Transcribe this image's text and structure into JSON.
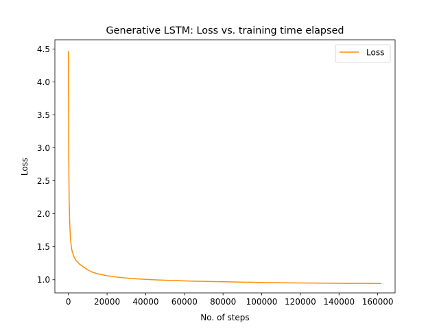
{
  "chart_data": {
    "type": "line",
    "title": "Generative LSTM: Loss vs. training time elapsed",
    "xlabel": "No. of steps",
    "ylabel": "Loss",
    "xlim": [
      -7000,
      169000
    ],
    "ylim": [
      0.8,
      4.64
    ],
    "xticks": [
      0,
      20000,
      40000,
      60000,
      80000,
      100000,
      120000,
      140000,
      160000
    ],
    "xtick_labels": [
      "0",
      "20000",
      "40000",
      "60000",
      "80000",
      "100000",
      "120000",
      "140000",
      "160000"
    ],
    "yticks": [
      1.0,
      1.5,
      2.0,
      2.5,
      3.0,
      3.5,
      4.0,
      4.5
    ],
    "ytick_labels": [
      "1.0",
      "1.5",
      "2.0",
      "2.5",
      "3.0",
      "3.5",
      "4.0",
      "4.5"
    ],
    "grid": false,
    "legend_position": "top-right",
    "series": [
      {
        "name": "Loss",
        "color": "#ff8c00",
        "x": [
          0,
          100,
          200,
          400,
          700,
          1000,
          1500,
          2000,
          3000,
          4000,
          5000,
          6000,
          8000,
          10000,
          12000,
          15000,
          20000,
          25000,
          30000,
          35000,
          40000,
          45000,
          50000,
          55000,
          60000,
          65000,
          70000,
          75000,
          80000,
          85000,
          90000,
          95000,
          100000,
          110000,
          120000,
          130000,
          140000,
          150000,
          155000,
          160000,
          161500
        ],
        "values": [
          4.46,
          3.6,
          2.8,
          2.2,
          1.85,
          1.65,
          1.5,
          1.42,
          1.34,
          1.29,
          1.26,
          1.23,
          1.19,
          1.15,
          1.12,
          1.09,
          1.06,
          1.04,
          1.025,
          1.013,
          1.005,
          0.998,
          0.992,
          0.986,
          0.982,
          0.978,
          0.975,
          0.972,
          0.969,
          0.966,
          0.963,
          0.961,
          0.958,
          0.954,
          0.951,
          0.948,
          0.946,
          0.944,
          0.944,
          0.943,
          0.943
        ]
      }
    ]
  }
}
